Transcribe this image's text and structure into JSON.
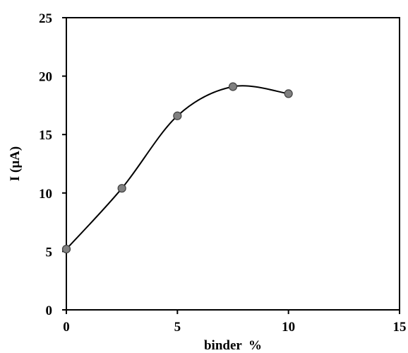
{
  "chart_data": {
    "type": "scatter",
    "title": "",
    "xlabel": "binder  %",
    "ylabel": "I (µA)",
    "xlim": [
      0,
      15
    ],
    "ylim": [
      0,
      25
    ],
    "xticks": [
      0,
      5,
      10,
      15
    ],
    "yticks": [
      0,
      5,
      10,
      15,
      20,
      25
    ],
    "xtick_labels": [
      "0",
      "5",
      "10",
      "15"
    ],
    "ytick_labels": [
      "0",
      "5",
      "10",
      "15",
      "20",
      "25"
    ],
    "grid": false,
    "legend": "none",
    "smooth_line": true,
    "series": [
      {
        "x": [
          0,
          2.5,
          5,
          7.5,
          10
        ],
        "y": [
          5.2,
          10.4,
          16.6,
          19.1,
          18.5
        ]
      }
    ],
    "colors": {
      "marker_fill": "#808080",
      "marker_stroke": "#404040",
      "line": "#000000",
      "axes": "#000000"
    }
  }
}
